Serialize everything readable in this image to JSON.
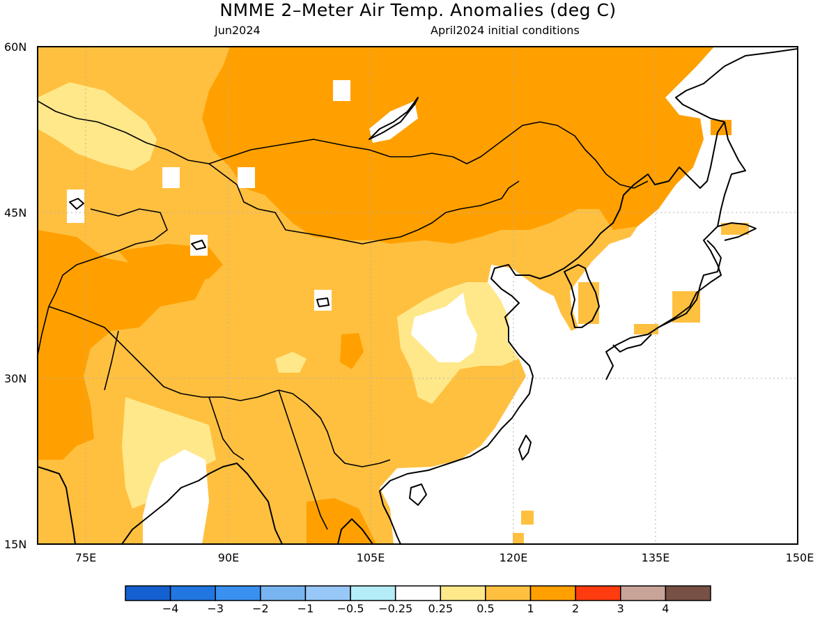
{
  "title": "NMME 2–Meter Air Temp. Anomalies (deg C)",
  "subtitle_left": "Jun2024",
  "subtitle_right": "April2024 initial conditions",
  "lat_labels": [
    "60N",
    "45N",
    "30N",
    "15N"
  ],
  "lon_labels": [
    "75E",
    "90E",
    "105E",
    "120E",
    "135E",
    "150E"
  ],
  "colorbar": {
    "colors": [
      "#1560d0",
      "#2176e0",
      "#3a90f0",
      "#78b4f0",
      "#98c8f8",
      "#b4ecf8",
      "#ffffff",
      "#ffe88a",
      "#ffc040",
      "#ffa000",
      "#ff3c10",
      "#c8a498",
      "#785044"
    ],
    "labels": [
      "−4",
      "−3",
      "−2",
      "−1",
      "−0.5",
      "−0.25",
      "0.25",
      "0.5",
      "1",
      "2",
      "3",
      "4"
    ]
  },
  "palette": {
    "land_low": "#ffe88a",
    "land_mid": "#ffc040",
    "land_high": "#ffa000",
    "coast": "#000000",
    "grid": "#b0b0b0"
  }
}
